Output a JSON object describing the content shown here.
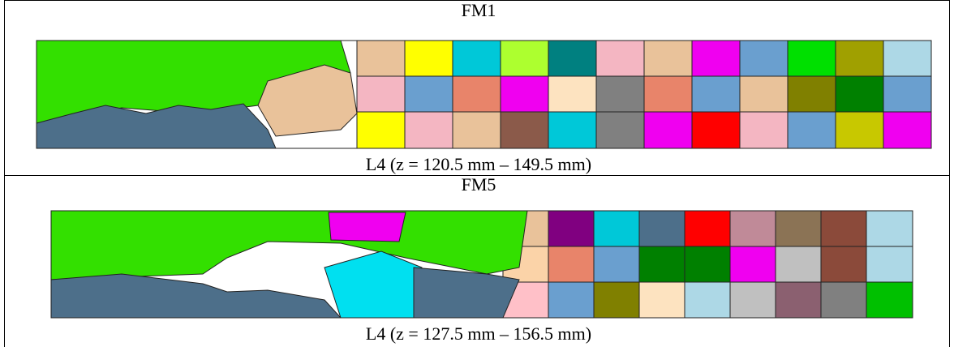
{
  "table": {
    "rows": [
      {
        "title": "FM1",
        "caption": "L4 (z = 120.5 mm – 149.5 mm)"
      },
      {
        "title": "FM5",
        "caption": "L4 (z = 127.5 mm – 156.5 mm)"
      }
    ]
  }
}
